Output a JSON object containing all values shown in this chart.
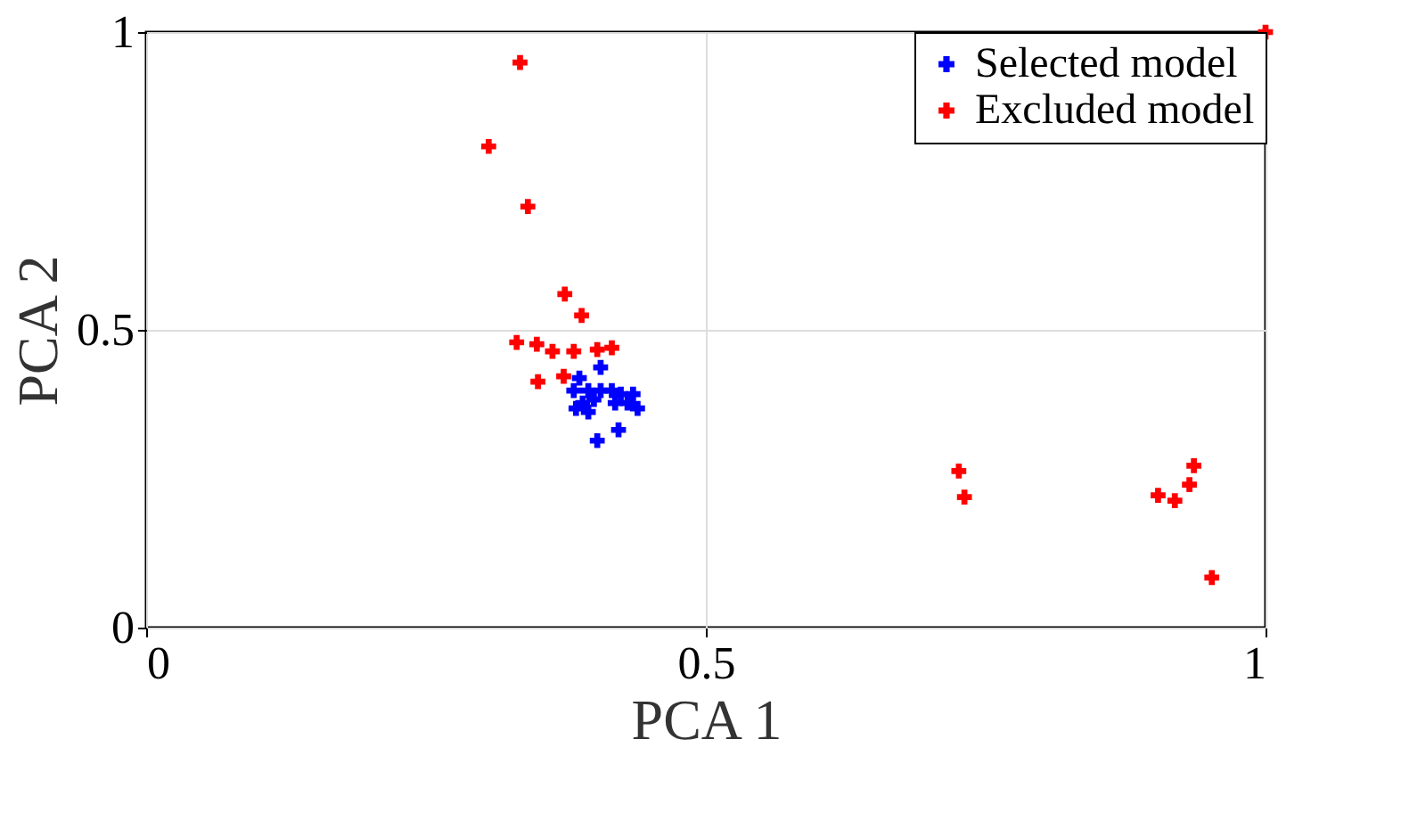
{
  "chart_data": {
    "type": "scatter",
    "xlabel": "PCA 1",
    "ylabel": "PCA 2",
    "xlim": [
      0,
      1
    ],
    "ylim": [
      0,
      1
    ],
    "xticks": [
      0,
      0.5,
      1
    ],
    "yticks": [
      0,
      0.5,
      1
    ],
    "grid": true,
    "legend": "top right",
    "marker": "cross",
    "series": [
      {
        "name": "Selected model",
        "color": "#0000ff",
        "x": [
          0.406,
          0.387,
          0.382,
          0.395,
          0.406,
          0.416,
          0.424,
          0.435,
          0.39,
          0.4,
          0.419,
          0.43,
          0.439,
          0.384,
          0.395,
          0.422,
          0.403
        ],
        "values": [
          0.437,
          0.419,
          0.398,
          0.398,
          0.398,
          0.398,
          0.392,
          0.392,
          0.377,
          0.383,
          0.377,
          0.377,
          0.368,
          0.368,
          0.362,
          0.332,
          0.314
        ]
      },
      {
        "name": "Excluded model",
        "color": "#ff0000",
        "x": [
          0.334,
          0.306,
          0.341,
          0.374,
          0.389,
          0.331,
          0.349,
          0.363,
          0.382,
          0.403,
          0.416,
          0.35,
          0.373,
          0.726,
          0.731,
          0.936,
          0.932,
          0.919,
          0.904,
          0.952,
          1.0
        ],
        "values": [
          0.949,
          0.808,
          0.707,
          0.56,
          0.524,
          0.479,
          0.476,
          0.464,
          0.464,
          0.467,
          0.47,
          0.413,
          0.422,
          0.263,
          0.219,
          0.272,
          0.24,
          0.213,
          0.222,
          0.084,
          1.0
        ]
      }
    ]
  }
}
